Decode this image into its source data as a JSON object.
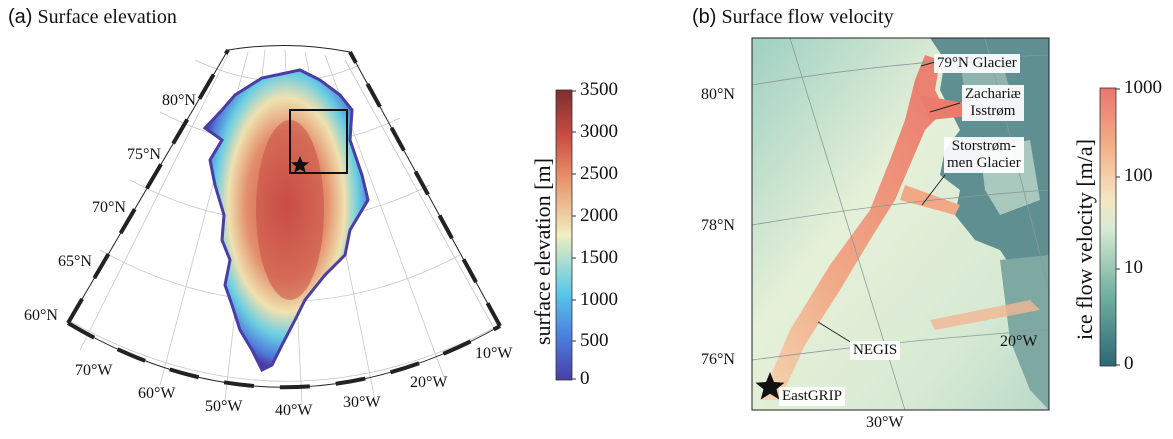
{
  "panel_a": {
    "title_tag": "(a)",
    "title": "Surface elevation",
    "lat_labels": [
      "80°N",
      "75°N",
      "70°N",
      "65°N",
      "60°N"
    ],
    "lon_labels": [
      "70°W",
      "60°W",
      "50°W",
      "40°W",
      "30°W",
      "20°W",
      "10°W"
    ],
    "colorbar": {
      "label": "surface elevation [m]",
      "ticks": [
        "3500",
        "3000",
        "2500",
        "2000",
        "1500",
        "1000",
        "500",
        "0"
      ],
      "colors": [
        "#5b2a86",
        "#4f63d8",
        "#54c8e8",
        "#f2efc4",
        "#e98d67",
        "#c94a42",
        "#7a2a2a"
      ]
    }
  },
  "panel_b": {
    "title_tag": "(b)",
    "title": "Surface flow velocity",
    "lat_labels": [
      "80°N",
      "78°N",
      "76°N"
    ],
    "lon_labels": [
      "30°W",
      "20°W"
    ],
    "annotations": {
      "glacier_79n": "79°N Glacier",
      "zachariae_1": "Zachariæ",
      "zachariae_2": "Isstrøm",
      "storstrommen_1": "Storstrøm-",
      "storstrommen_2": "men Glacier",
      "negis": "NEGIS",
      "eastgrip": "EastGRIP"
    },
    "colorbar": {
      "label": "ice flow velocity [m/a]",
      "ticks": [
        "1000",
        "100",
        "10",
        "0"
      ],
      "colors": [
        "#2f6a78",
        "#8cc4b2",
        "#f4e9c4",
        "#f2b08a",
        "#ec7a6e"
      ]
    }
  }
}
